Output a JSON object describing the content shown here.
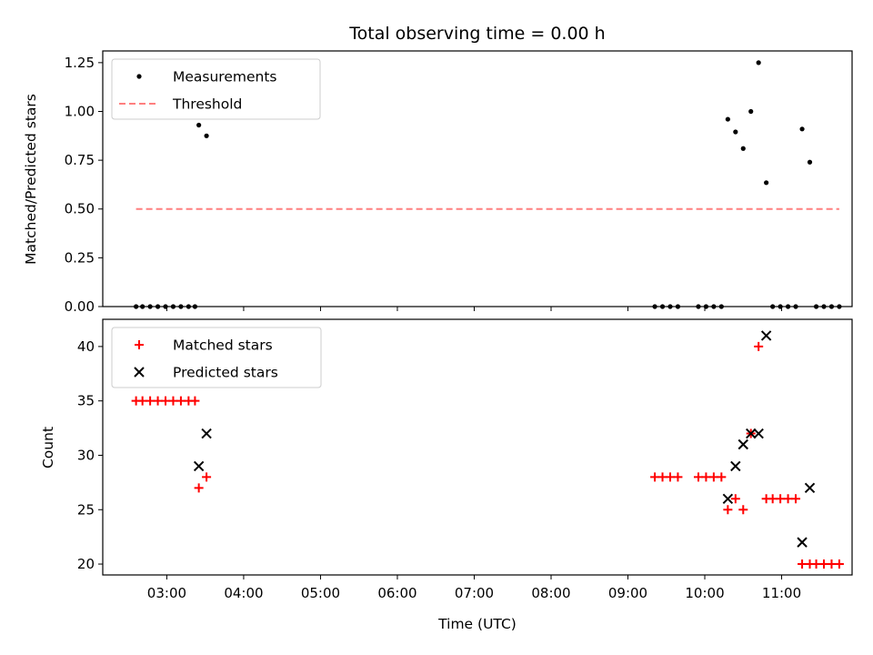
{
  "chart_data": [
    {
      "type": "scatter",
      "title": "Total observing time = 0.00 h",
      "xlabel": "",
      "ylabel": "Matched/Predicted stars",
      "xlim": [
        "02:10",
        "11:55"
      ],
      "ylim": [
        0,
        1.31
      ],
      "yticks": [
        "0.00",
        "0.25",
        "0.50",
        "0.75",
        "1.00",
        "1.25"
      ],
      "legend_position": "top-left",
      "series": [
        {
          "name": "Measurements",
          "style": "dot",
          "color": "#000000",
          "points": [
            [
              "02:36",
              0
            ],
            [
              "02:41",
              0
            ],
            [
              "02:47",
              0
            ],
            [
              "02:53",
              0
            ],
            [
              "02:59",
              0
            ],
            [
              "03:05",
              0
            ],
            [
              "03:11",
              0
            ],
            [
              "03:17",
              0
            ],
            [
              "03:22",
              0
            ],
            [
              "03:25",
              0.93
            ],
            [
              "03:31",
              0.875
            ],
            [
              "09:21",
              0
            ],
            [
              "09:27",
              0
            ],
            [
              "09:33",
              0
            ],
            [
              "09:39",
              0
            ],
            [
              "09:55",
              0
            ],
            [
              "10:01",
              0
            ],
            [
              "10:07",
              0
            ],
            [
              "10:13",
              0
            ],
            [
              "10:18",
              0.96
            ],
            [
              "10:24",
              0.895
            ],
            [
              "10:30",
              0.81
            ],
            [
              "10:36",
              1.0
            ],
            [
              "10:42",
              1.25
            ],
            [
              "10:48",
              0.635
            ],
            [
              "10:53",
              0
            ],
            [
              "10:59",
              0
            ],
            [
              "11:05",
              0
            ],
            [
              "11:11",
              0
            ],
            [
              "11:16",
              0.91
            ],
            [
              "11:22",
              0.74
            ],
            [
              "11:27",
              0
            ],
            [
              "11:33",
              0
            ],
            [
              "11:39",
              0
            ],
            [
              "11:45",
              0
            ]
          ]
        },
        {
          "name": "Threshold",
          "style": "dashed-line",
          "color": "#ff7f7f",
          "points": [
            [
              "02:36",
              0.5
            ],
            [
              "11:45",
              0.5
            ]
          ]
        }
      ]
    },
    {
      "type": "scatter",
      "title": "",
      "xlabel": "Time (UTC)",
      "ylabel": "Count",
      "xlim": [
        "02:10",
        "11:55"
      ],
      "ylim": [
        19.0,
        42.5
      ],
      "yticks": [
        "20",
        "25",
        "30",
        "35",
        "40"
      ],
      "xticks": [
        "03:00",
        "04:00",
        "05:00",
        "06:00",
        "07:00",
        "08:00",
        "09:00",
        "10:00",
        "11:00"
      ],
      "legend_position": "top-left",
      "series": [
        {
          "name": "Matched stars",
          "style": "plus",
          "color": "#ff0000",
          "points": [
            [
              "02:36",
              35
            ],
            [
              "02:41",
              35
            ],
            [
              "02:47",
              35
            ],
            [
              "02:53",
              35
            ],
            [
              "02:59",
              35
            ],
            [
              "03:05",
              35
            ],
            [
              "03:11",
              35
            ],
            [
              "03:17",
              35
            ],
            [
              "03:22",
              35
            ],
            [
              "03:25",
              27
            ],
            [
              "03:31",
              28
            ],
            [
              "09:21",
              28
            ],
            [
              "09:27",
              28
            ],
            [
              "09:33",
              28
            ],
            [
              "09:39",
              28
            ],
            [
              "09:55",
              28
            ],
            [
              "10:01",
              28
            ],
            [
              "10:07",
              28
            ],
            [
              "10:13",
              28
            ],
            [
              "10:18",
              25
            ],
            [
              "10:24",
              26
            ],
            [
              "10:30",
              25
            ],
            [
              "10:36",
              32
            ],
            [
              "10:42",
              40
            ],
            [
              "10:48",
              26
            ],
            [
              "10:53",
              26
            ],
            [
              "10:59",
              26
            ],
            [
              "11:05",
              26
            ],
            [
              "11:11",
              26
            ],
            [
              "11:16",
              20
            ],
            [
              "11:22",
              20
            ],
            [
              "11:27",
              20
            ],
            [
              "11:33",
              20
            ],
            [
              "11:39",
              20
            ],
            [
              "11:45",
              20
            ]
          ]
        },
        {
          "name": "Predicted stars",
          "style": "x",
          "color": "#000000",
          "points": [
            [
              "03:25",
              29
            ],
            [
              "03:31",
              32
            ],
            [
              "10:18",
              26
            ],
            [
              "10:24",
              29
            ],
            [
              "10:30",
              31
            ],
            [
              "10:36",
              32
            ],
            [
              "10:42",
              32
            ],
            [
              "10:48",
              41
            ],
            [
              "11:16",
              22
            ],
            [
              "11:22",
              27
            ]
          ]
        }
      ]
    }
  ]
}
